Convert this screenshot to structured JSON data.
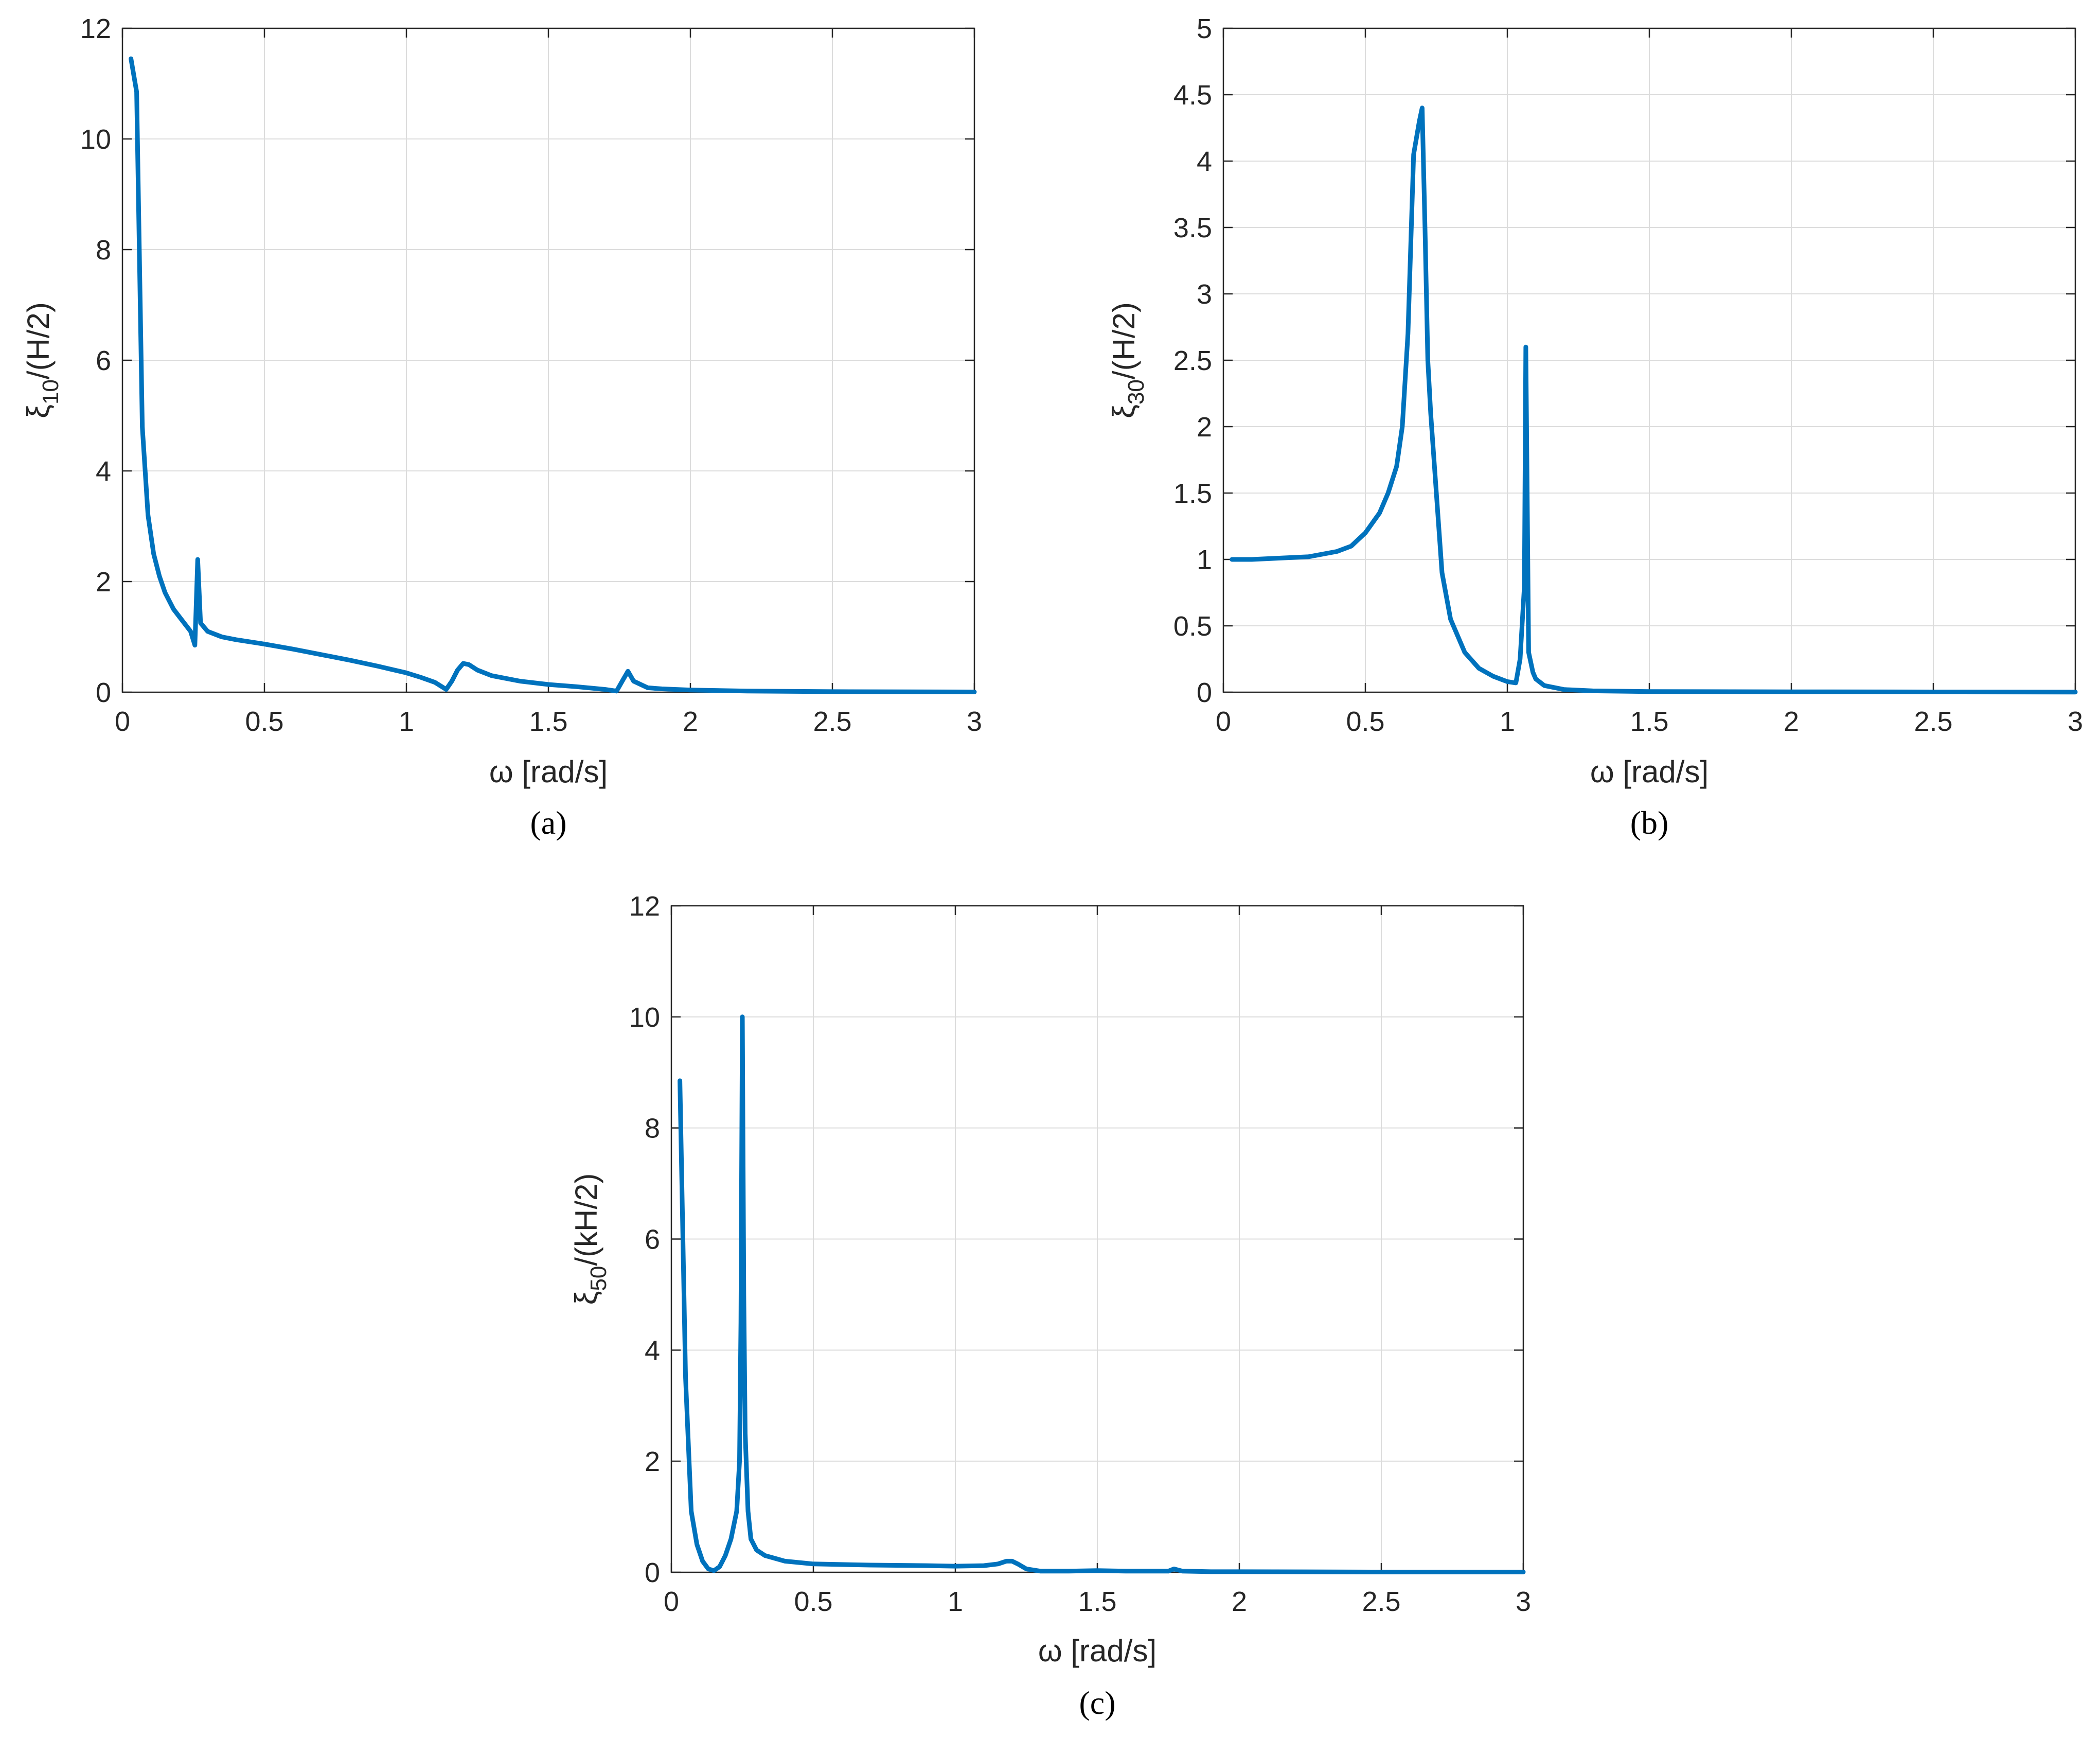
{
  "colors": {
    "series": "#0072BD",
    "axes": "#262626",
    "grid": "#dcdcdc"
  },
  "chart_data": [
    {
      "type": "line",
      "panel": "(a)",
      "panel_letter": "a",
      "xlabel": "ω  [rad/s]",
      "ylabel_base": "ξ",
      "ylabel_sub": "10",
      "ylabel_tail": "/(H/2)",
      "xlim": [
        0,
        3
      ],
      "ylim": [
        0,
        12
      ],
      "xticks": [
        0,
        0.5,
        1,
        1.5,
        2,
        2.5,
        3
      ],
      "yticks": [
        0,
        2,
        4,
        6,
        8,
        10,
        12
      ],
      "xtick_labels": [
        "0",
        "0.5",
        "1",
        "1.5",
        "2",
        "2.5",
        "3"
      ],
      "ytick_labels": [
        "0",
        "2",
        "4",
        "6",
        "8",
        "10",
        "12"
      ],
      "grid": true,
      "series": [
        {
          "x": [
            0.03,
            0.05,
            0.07,
            0.09,
            0.11,
            0.13,
            0.15,
            0.18,
            0.21,
            0.24,
            0.255,
            0.265,
            0.275,
            0.3,
            0.35,
            0.4,
            0.5,
            0.6,
            0.7,
            0.8,
            0.9,
            1.0,
            1.05,
            1.1,
            1.14,
            1.16,
            1.18,
            1.2,
            1.22,
            1.25,
            1.3,
            1.4,
            1.5,
            1.6,
            1.7,
            1.74,
            1.76,
            1.78,
            1.8,
            1.85,
            1.9,
            2.0,
            2.2,
            2.5,
            3.0
          ],
          "y": [
            11.45,
            10.85,
            4.8,
            3.2,
            2.5,
            2.1,
            1.8,
            1.5,
            1.3,
            1.1,
            0.85,
            2.4,
            1.25,
            1.1,
            1.0,
            0.95,
            0.87,
            0.78,
            0.68,
            0.58,
            0.47,
            0.35,
            0.27,
            0.18,
            0.05,
            0.2,
            0.4,
            0.52,
            0.5,
            0.4,
            0.3,
            0.2,
            0.14,
            0.1,
            0.05,
            0.02,
            0.2,
            0.38,
            0.2,
            0.08,
            0.06,
            0.04,
            0.02,
            0.01,
            0.005
          ]
        }
      ]
    },
    {
      "type": "line",
      "panel": "(b)",
      "panel_letter": "b",
      "xlabel": "ω  [rad/s]",
      "ylabel_base": "ξ",
      "ylabel_sub": "30",
      "ylabel_tail": "/(H/2)",
      "xlim": [
        0,
        3
      ],
      "ylim": [
        0,
        5
      ],
      "xticks": [
        0,
        0.5,
        1,
        1.5,
        2,
        2.5,
        3
      ],
      "yticks": [
        0,
        0.5,
        1,
        1.5,
        2,
        2.5,
        3,
        3.5,
        4,
        4.5,
        5
      ],
      "xtick_labels": [
        "0",
        "0.5",
        "1",
        "1.5",
        "2",
        "2.5",
        "3"
      ],
      "ytick_labels": [
        "0",
        "0.5",
        "1",
        "1.5",
        "2",
        "2.5",
        "3",
        "3.5",
        "4",
        "4.5",
        "5"
      ],
      "grid": true,
      "series": [
        {
          "x": [
            0.03,
            0.1,
            0.2,
            0.3,
            0.4,
            0.45,
            0.5,
            0.55,
            0.58,
            0.61,
            0.63,
            0.65,
            0.67,
            0.69,
            0.7,
            0.71,
            0.72,
            0.73,
            0.75,
            0.77,
            0.8,
            0.85,
            0.9,
            0.95,
            1.0,
            1.03,
            1.045,
            1.06,
            1.065,
            1.075,
            1.09,
            1.1,
            1.13,
            1.2,
            1.3,
            1.5,
            2.0,
            2.5,
            3.0
          ],
          "y": [
            1.0,
            1.0,
            1.01,
            1.02,
            1.06,
            1.1,
            1.2,
            1.35,
            1.5,
            1.7,
            2.0,
            2.7,
            4.05,
            4.3,
            4.4,
            3.5,
            2.5,
            2.1,
            1.5,
            0.9,
            0.55,
            0.3,
            0.18,
            0.12,
            0.08,
            0.07,
            0.25,
            0.8,
            2.6,
            0.3,
            0.15,
            0.1,
            0.05,
            0.02,
            0.01,
            0.005,
            0.003,
            0.002,
            0.001
          ]
        }
      ]
    },
    {
      "type": "line",
      "panel": "(c)",
      "panel_letter": "c",
      "xlabel": "ω  [rad/s]",
      "ylabel_base": "ξ",
      "ylabel_sub": "50",
      "ylabel_tail": "/(kH/2)",
      "xlim": [
        0,
        3
      ],
      "ylim": [
        0,
        12
      ],
      "xticks": [
        0,
        0.5,
        1,
        1.5,
        2,
        2.5,
        3
      ],
      "yticks": [
        0,
        2,
        4,
        6,
        8,
        10,
        12
      ],
      "xtick_labels": [
        "0",
        "0.5",
        "1",
        "1.5",
        "2",
        "2.5",
        "3"
      ],
      "ytick_labels": [
        "0",
        "2",
        "4",
        "6",
        "8",
        "10",
        "12"
      ],
      "grid": true,
      "series": [
        {
          "x": [
            0.03,
            0.05,
            0.07,
            0.09,
            0.11,
            0.13,
            0.15,
            0.17,
            0.19,
            0.21,
            0.23,
            0.24,
            0.245,
            0.25,
            0.255,
            0.26,
            0.27,
            0.28,
            0.3,
            0.33,
            0.4,
            0.5,
            0.7,
            0.9,
            1.0,
            1.1,
            1.15,
            1.18,
            1.2,
            1.22,
            1.25,
            1.3,
            1.4,
            1.5,
            1.6,
            1.7,
            1.75,
            1.77,
            1.8,
            1.9,
            2.0,
            2.5,
            3.0
          ],
          "y": [
            8.85,
            3.5,
            1.1,
            0.5,
            0.2,
            0.06,
            0.03,
            0.1,
            0.3,
            0.6,
            1.1,
            2.0,
            4.5,
            10.0,
            5.0,
            2.5,
            1.1,
            0.6,
            0.4,
            0.3,
            0.2,
            0.15,
            0.13,
            0.12,
            0.11,
            0.12,
            0.15,
            0.2,
            0.2,
            0.15,
            0.06,
            0.02,
            0.02,
            0.03,
            0.02,
            0.02,
            0.02,
            0.06,
            0.02,
            0.01,
            0.01,
            0.005,
            0.005
          ]
        }
      ]
    }
  ]
}
